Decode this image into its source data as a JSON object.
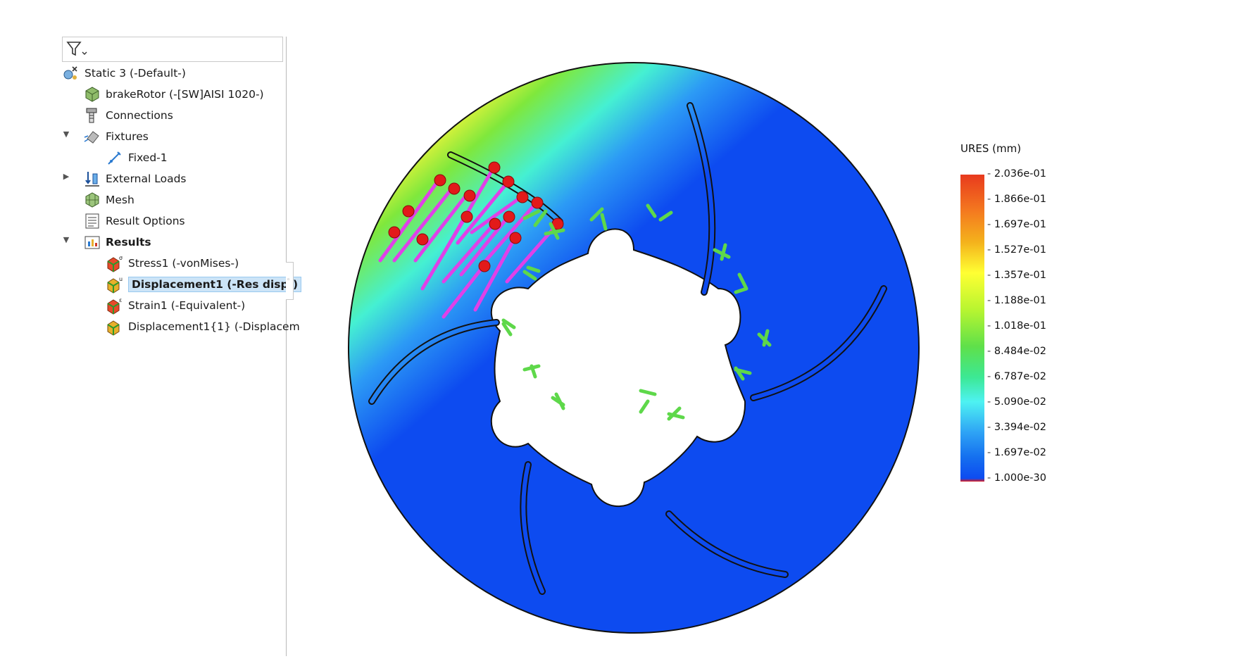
{
  "tree": {
    "study": "Static 3 (-Default-)",
    "part": "brakeRotor (-[SW]AISI 1020-)",
    "connections": "Connections",
    "fixtures": "Fixtures",
    "fixed": "Fixed-1",
    "external_loads": "External Loads",
    "mesh": "Mesh",
    "result_options": "Result Options",
    "results": "Results",
    "stress": "Stress1 (-vonMises-)",
    "displacement": "Displacement1 (-Res disp-)",
    "strain": "Strain1 (-Equivalent-)",
    "displacement2": "Displacement1{1} (-Displacem"
  },
  "legend": {
    "title": "URES (mm)",
    "labels": [
      "2.036e-01",
      "1.866e-01",
      "1.697e-01",
      "1.527e-01",
      "1.357e-01",
      "1.188e-01",
      "1.018e-01",
      "8.484e-02",
      "6.787e-02",
      "5.090e-02",
      "3.394e-02",
      "1.697e-02",
      "1.000e-30"
    ]
  },
  "icons": {
    "filter": "filter-icon",
    "study": "static-study-icon",
    "part": "part-icon",
    "connections": "connections-icon",
    "fixtures": "fixtures-icon",
    "fixed": "fixed-geometry-icon",
    "external_loads": "external-loads-icon",
    "mesh": "mesh-icon",
    "result_options": "result-options-icon",
    "results": "results-folder-icon",
    "plot": "result-plot-icon"
  },
  "colors": {
    "selection": "#cce4f7",
    "rotor_base": "#0d4bf0",
    "load_arrow": "#e040e8",
    "fixture_arrow": "#5ed84a"
  }
}
